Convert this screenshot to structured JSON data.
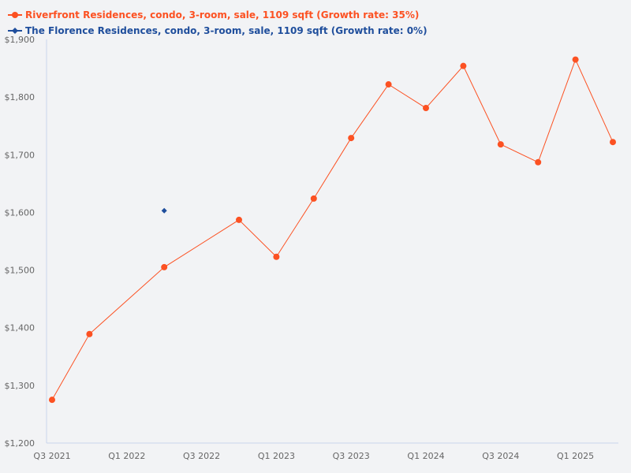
{
  "colors": {
    "background": "#f2f3f5",
    "series_1": "#fc5122",
    "series_2": "#1f4e9c",
    "axis": "#c9d5ea",
    "tick_text": "#666666"
  },
  "legend": {
    "items": [
      {
        "label": "Riverfront Residences, condo, 3-room, sale, 1109 sqft (Growth rate: 35%)",
        "marker": "circle",
        "color": "#fc5122"
      },
      {
        "label": "The Florence Residences, condo, 3-room, sale, 1109 sqft (Growth rate: 0%)",
        "marker": "diamond",
        "color": "#1f4e9c"
      }
    ]
  },
  "chart_data": {
    "type": "line",
    "title": "",
    "xlabel": "",
    "ylabel": "",
    "ylim": [
      1200,
      1900
    ],
    "yticks": [
      "$1,200",
      "$1,300",
      "$1,400",
      "$1,500",
      "$1,600",
      "$1,700",
      "$1,800",
      "$1,900"
    ],
    "xticks": [
      "Q3 2021",
      "Q1 2022",
      "Q3 2022",
      "Q1 2023",
      "Q3 2023",
      "Q1 2024",
      "Q3 2024",
      "Q1 2025"
    ],
    "categories": [
      "Q3 2021",
      "Q4 2021",
      "Q1 2022",
      "Q2 2022",
      "Q3 2022",
      "Q4 2022",
      "Q1 2023",
      "Q2 2023",
      "Q3 2023",
      "Q4 2023",
      "Q1 2024",
      "Q2 2024",
      "Q3 2024",
      "Q4 2024",
      "Q1 2025",
      "Q2 2025"
    ],
    "grid": false,
    "legend_position": "top-left",
    "series": [
      {
        "name": "Riverfront Residences, condo, 3-room, sale, 1109 sqft (Growth rate: 35%)",
        "color": "#fc5122",
        "marker": "circle",
        "values": [
          1275,
          1389,
          null,
          1505,
          null,
          1587,
          1523,
          1624,
          1729,
          1822,
          1781,
          1854,
          1718,
          1687,
          1865,
          1722
        ]
      },
      {
        "name": "The Florence Residences, condo, 3-room, sale, 1109 sqft (Growth rate: 0%)",
        "color": "#1f4e9c",
        "marker": "diamond",
        "values": [
          null,
          null,
          null,
          1603,
          null,
          null,
          null,
          null,
          null,
          null,
          null,
          null,
          null,
          null,
          null,
          null
        ]
      }
    ]
  }
}
